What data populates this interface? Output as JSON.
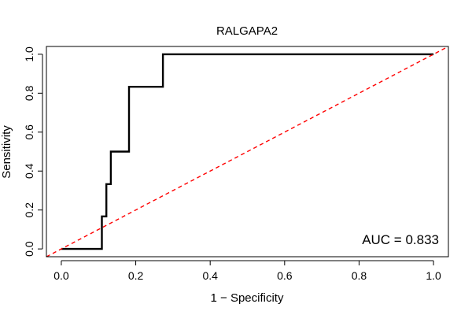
{
  "chart_data": {
    "type": "line",
    "title": "RALGAPA2",
    "xlabel": "1 − Specificity",
    "ylabel": "Sensitivity",
    "xlim": [
      -0.04,
      1.04
    ],
    "ylim": [
      -0.04,
      1.04
    ],
    "xticks": [
      0.0,
      0.2,
      0.4,
      0.6,
      0.8,
      1.0
    ],
    "yticks": [
      0.0,
      0.2,
      0.4,
      0.6,
      0.8,
      1.0
    ],
    "xtick_labels": [
      "0.0",
      "0.2",
      "0.4",
      "0.6",
      "0.8",
      "1.0"
    ],
    "ytick_labels": [
      "0.0",
      "0.2",
      "0.4",
      "0.6",
      "0.8",
      "1.0"
    ],
    "grid": false,
    "annotation": "AUC = 0.833",
    "series": [
      {
        "color": "#000000",
        "style": "solid",
        "x": [
          0.0,
          0.109,
          0.109,
          0.121,
          0.121,
          0.133,
          0.133,
          0.182,
          0.182,
          0.273,
          0.273,
          1.0
        ],
        "y": [
          0.0,
          0.0,
          0.167,
          0.167,
          0.333,
          0.333,
          0.5,
          0.5,
          0.833,
          0.833,
          1.0,
          1.0
        ]
      },
      {
        "color": "#ff0000",
        "style": "dashed",
        "x": [
          -0.04,
          1.04
        ],
        "y": [
          -0.04,
          1.04
        ]
      }
    ]
  }
}
